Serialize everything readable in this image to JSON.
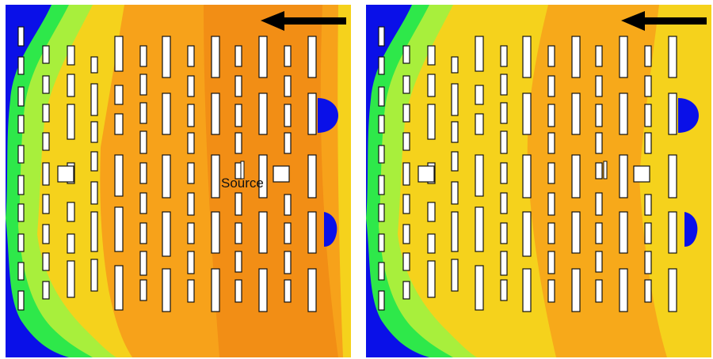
{
  "figure": {
    "panels": [
      {
        "id": "left",
        "source_label": "Source",
        "has_source_label": true
      },
      {
        "id": "right",
        "source_label": "",
        "has_source_label": false
      }
    ],
    "wind_arrow": "arrow-left-icon",
    "colors": {
      "background_low": "#0a10e8",
      "green": "#2ee84a",
      "light_green": "#a8ef3c",
      "yellow": "#f5d21c",
      "orange": "#f7a21a",
      "dark_orange": "#f08a14",
      "building_fill": "#ffffff",
      "building_stroke": "#111111"
    }
  }
}
